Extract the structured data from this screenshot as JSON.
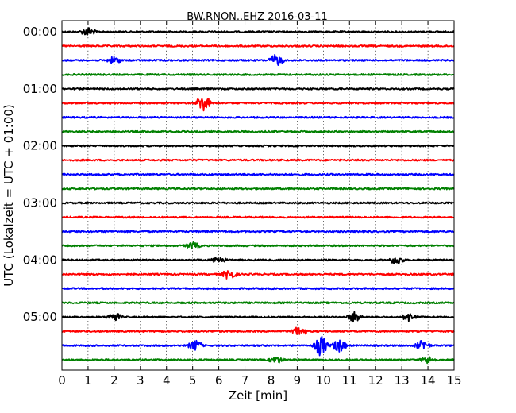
{
  "chart_data": {
    "type": "line",
    "title": "BW.RNON..EHZ 2016-03-11",
    "xlabel": "Zeit  [min]",
    "ylabel": "UTC (Lokalzeit = UTC + 01:00)",
    "xlim": [
      0,
      15
    ],
    "x_ticks": [
      "0",
      "1",
      "2",
      "3",
      "4",
      "5",
      "6",
      "7",
      "8",
      "9",
      "10",
      "11",
      "12",
      "13",
      "14",
      "15"
    ],
    "y_ticks": [
      "00:00",
      "01:00",
      "02:00",
      "03:00",
      "04:00",
      "05:00"
    ],
    "vertical_grid": true,
    "grid_style": "dotted",
    "trace_interval_minutes": 15,
    "trace_colors": [
      "#000000",
      "#ff0000",
      "#0000ff",
      "#008000"
    ],
    "traces": [
      {
        "start": "00:00",
        "color": "#000000",
        "events": [
          {
            "min": 1.0,
            "amp": 0.25
          }
        ]
      },
      {
        "start": "00:15",
        "color": "#ff0000",
        "events": []
      },
      {
        "start": "00:30",
        "color": "#0000ff",
        "events": [
          {
            "min": 8.2,
            "amp": 0.35
          },
          {
            "min": 2.0,
            "amp": 0.2
          }
        ]
      },
      {
        "start": "00:45",
        "color": "#008000",
        "events": []
      },
      {
        "start": "01:00",
        "color": "#000000",
        "events": []
      },
      {
        "start": "01:15",
        "color": "#ff0000",
        "events": [
          {
            "min": 5.4,
            "amp": 0.5
          }
        ]
      },
      {
        "start": "01:30",
        "color": "#0000ff",
        "events": []
      },
      {
        "start": "01:45",
        "color": "#008000",
        "events": []
      },
      {
        "start": "02:00",
        "color": "#000000",
        "events": []
      },
      {
        "start": "02:15",
        "color": "#ff0000",
        "events": []
      },
      {
        "start": "02:30",
        "color": "#0000ff",
        "events": []
      },
      {
        "start": "02:45",
        "color": "#008000",
        "events": []
      },
      {
        "start": "03:00",
        "color": "#000000",
        "events": []
      },
      {
        "start": "03:15",
        "color": "#ff0000",
        "events": []
      },
      {
        "start": "03:30",
        "color": "#0000ff",
        "events": []
      },
      {
        "start": "03:45",
        "color": "#008000",
        "events": [
          {
            "min": 5.0,
            "amp": 0.2
          }
        ]
      },
      {
        "start": "04:00",
        "color": "#000000",
        "events": [
          {
            "min": 6.0,
            "amp": 0.2
          },
          {
            "min": 12.8,
            "amp": 0.25
          }
        ]
      },
      {
        "start": "04:15",
        "color": "#ff0000",
        "events": [
          {
            "min": 6.4,
            "amp": 0.3
          }
        ]
      },
      {
        "start": "04:30",
        "color": "#0000ff",
        "events": []
      },
      {
        "start": "04:45",
        "color": "#008000",
        "events": []
      },
      {
        "start": "05:00",
        "color": "#000000",
        "events": [
          {
            "min": 2.0,
            "amp": 0.25
          },
          {
            "min": 11.2,
            "amp": 0.3
          },
          {
            "min": 13.3,
            "amp": 0.25
          }
        ]
      },
      {
        "start": "05:15",
        "color": "#ff0000",
        "events": [
          {
            "min": 9.1,
            "amp": 0.3
          }
        ]
      },
      {
        "start": "05:30",
        "color": "#0000ff",
        "events": [
          {
            "min": 5.1,
            "amp": 0.3
          },
          {
            "min": 9.9,
            "amp": 0.6
          },
          {
            "min": 10.6,
            "amp": 0.4
          },
          {
            "min": 13.8,
            "amp": 0.3
          }
        ]
      },
      {
        "start": "05:45",
        "color": "#008000",
        "events": [
          {
            "min": 8.2,
            "amp": 0.2
          },
          {
            "min": 14.0,
            "amp": 0.2
          }
        ]
      }
    ]
  }
}
